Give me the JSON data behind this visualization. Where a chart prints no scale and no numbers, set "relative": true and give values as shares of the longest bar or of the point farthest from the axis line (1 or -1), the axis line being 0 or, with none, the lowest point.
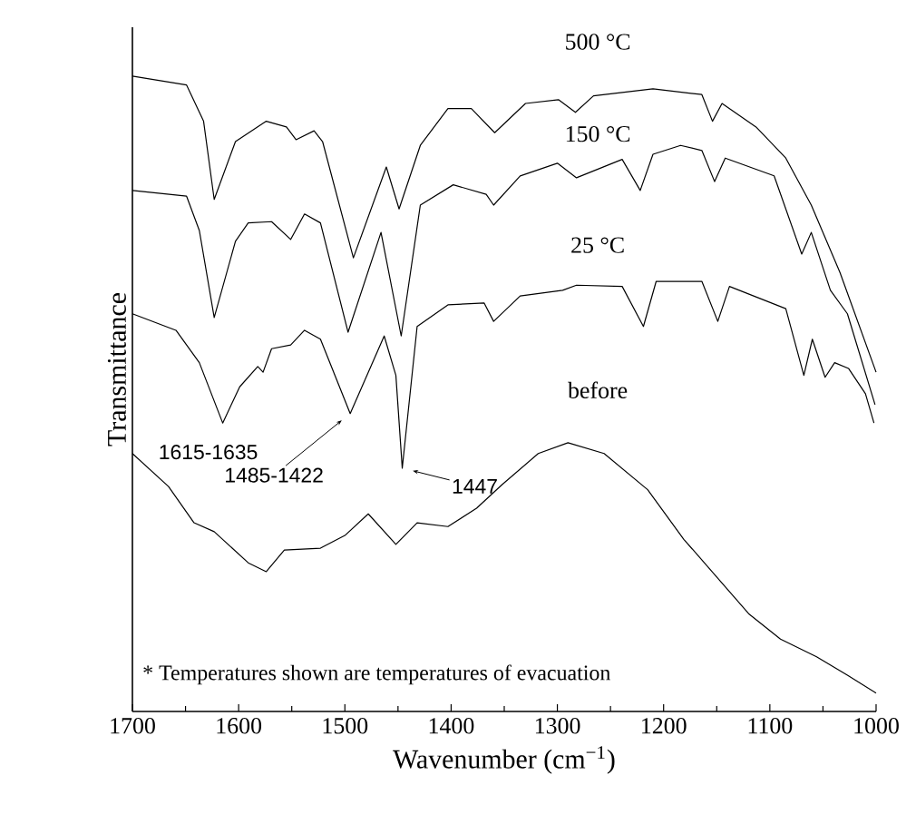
{
  "chart_data": {
    "type": "line",
    "relative": true,
    "tick_labels": "x",
    "xlabel": "Wavenumber (cm$^{−1}$)",
    "ylabel": "Transmittance",
    "xlim": [
      1700,
      1000
    ],
    "xticks": [
      1700,
      1600,
      1500,
      1400,
      1300,
      1200,
      1100,
      1000
    ],
    "series": [
      {
        "name": "500 °C",
        "color": "#000000",
        "x": [
          1700,
          1649,
          1633,
          1623,
          1603,
          1574,
          1555,
          1546,
          1529,
          1521,
          1492,
          1461,
          1449,
          1429,
          1403,
          1381,
          1359,
          1330,
          1299,
          1283,
          1266,
          1210,
          1164,
          1154,
          1145,
          1113,
          1085,
          1061,
          1034,
          1000
        ],
        "values": [
          1.0,
          0.986,
          0.929,
          0.806,
          0.897,
          0.929,
          0.92,
          0.9,
          0.914,
          0.897,
          0.714,
          0.857,
          0.791,
          0.891,
          0.949,
          0.949,
          0.911,
          0.957,
          0.963,
          0.943,
          0.969,
          0.98,
          0.971,
          0.929,
          0.957,
          0.92,
          0.871,
          0.797,
          0.691,
          0.534
        ]
      },
      {
        "name": "150 °C",
        "color": "#000000",
        "x": [
          1700,
          1649,
          1637,
          1623,
          1603,
          1591,
          1569,
          1551,
          1538,
          1523,
          1497,
          1466,
          1447,
          1429,
          1398,
          1367,
          1360,
          1335,
          1300,
          1282,
          1239,
          1222,
          1210,
          1184,
          1164,
          1152,
          1142,
          1096,
          1070,
          1061,
          1043,
          1027,
          1001
        ],
        "values": [
          0.82,
          0.811,
          0.757,
          0.62,
          0.74,
          0.769,
          0.771,
          0.743,
          0.783,
          0.769,
          0.597,
          0.754,
          0.591,
          0.797,
          0.829,
          0.814,
          0.797,
          0.843,
          0.863,
          0.84,
          0.869,
          0.82,
          0.877,
          0.891,
          0.883,
          0.834,
          0.871,
          0.843,
          0.72,
          0.754,
          0.663,
          0.626,
          0.483
        ]
      },
      {
        "name": "25 °C",
        "color": "#000000",
        "x": [
          1700,
          1659,
          1637,
          1615,
          1599,
          1582,
          1577,
          1569,
          1551,
          1538,
          1523,
          1495,
          1463,
          1452,
          1446,
          1432,
          1403,
          1369,
          1360,
          1335,
          1295,
          1282,
          1239,
          1219,
          1207,
          1164,
          1149,
          1138,
          1085,
          1068,
          1060,
          1048,
          1039,
          1026,
          1010,
          1002
        ],
        "values": [
          0.626,
          0.6,
          0.549,
          0.454,
          0.511,
          0.543,
          0.534,
          0.571,
          0.577,
          0.6,
          0.586,
          0.469,
          0.591,
          0.529,
          0.383,
          0.606,
          0.64,
          0.643,
          0.614,
          0.654,
          0.663,
          0.671,
          0.669,
          0.606,
          0.677,
          0.677,
          0.614,
          0.669,
          0.634,
          0.529,
          0.586,
          0.526,
          0.549,
          0.54,
          0.5,
          0.454
        ]
      },
      {
        "name": "before",
        "color": "#000000",
        "x": [
          1700,
          1666,
          1642,
          1623,
          1591,
          1574,
          1557,
          1523,
          1500,
          1478,
          1452,
          1432,
          1403,
          1376,
          1352,
          1318,
          1290,
          1256,
          1215,
          1181,
          1147,
          1120,
          1090,
          1056,
          1027,
          1000
        ],
        "values": [
          0.406,
          0.354,
          0.297,
          0.283,
          0.234,
          0.22,
          0.254,
          0.257,
          0.277,
          0.311,
          0.263,
          0.297,
          0.291,
          0.32,
          0.357,
          0.406,
          0.423,
          0.406,
          0.349,
          0.271,
          0.206,
          0.154,
          0.114,
          0.086,
          0.057,
          0.029
        ]
      }
    ],
    "annotations": [
      {
        "text": "1615-1635",
        "x": 1615,
        "y": 0.454
      },
      {
        "text": "1485-1422",
        "x": 1495,
        "y": 0.469
      },
      {
        "text": "1447",
        "x": 1446,
        "y": 0.383
      },
      "* Temperatures shown are temperatures of evacuation"
    ]
  }
}
